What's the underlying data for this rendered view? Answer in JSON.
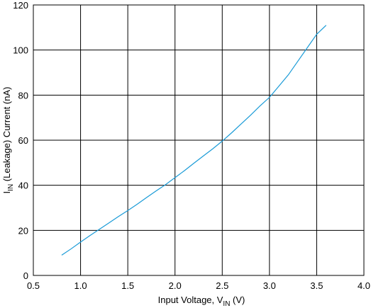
{
  "chart_data": {
    "type": "line",
    "title": "",
    "xlabel": {
      "main": "Input Voltage, V",
      "sub": "IN",
      "unit": " (V)"
    },
    "ylabel": {
      "main": "I",
      "sub": "IN",
      "rest": " (Leakage) Current (nA)"
    },
    "xlim": [
      0.5,
      4.0
    ],
    "ylim": [
      0,
      120
    ],
    "x_ticks": [
      "0.5",
      "1.0",
      "1.5",
      "2.0",
      "2.5",
      "3.0",
      "3.5",
      "4.0"
    ],
    "y_ticks": [
      "0",
      "20",
      "40",
      "60",
      "80",
      "100",
      "120"
    ],
    "grid": true,
    "series": [
      {
        "color": "#1a9bd7",
        "x": [
          0.8,
          0.9,
          1.0,
          1.1,
          1.2,
          1.3,
          1.4,
          1.5,
          1.6,
          1.7,
          1.8,
          1.9,
          2.0,
          2.1,
          2.2,
          2.3,
          2.4,
          2.5,
          2.6,
          2.7,
          2.8,
          2.9,
          3.0,
          3.1,
          3.2,
          3.3,
          3.4,
          3.5,
          3.6
        ],
        "y": [
          9.0,
          11.8,
          14.8,
          17.7,
          20.5,
          23.3,
          26.1,
          28.8,
          31.6,
          34.6,
          37.5,
          40.3,
          43.4,
          46.5,
          49.8,
          53.0,
          56.2,
          59.6,
          63.3,
          67.2,
          71.1,
          75.2,
          79.0,
          84.0,
          89.0,
          95.0,
          101.0,
          107.0,
          111.0
        ]
      }
    ]
  }
}
